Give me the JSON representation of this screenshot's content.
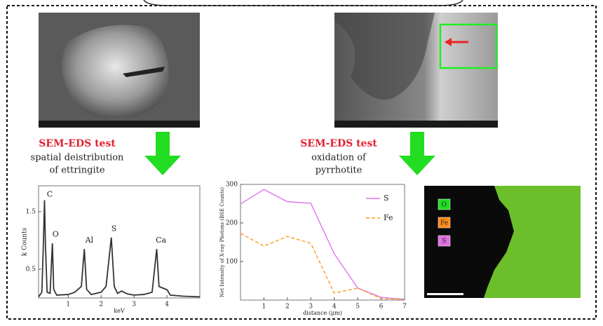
{
  "labels": {
    "left_test": "SEM-EDS test",
    "left_caption_1": "spatial deistribution",
    "left_caption_2": "of ettringite",
    "right_test": "SEM-EDS test",
    "right_caption_1": "oxidation of",
    "right_caption_2": "pyrrhotite",
    "map_legend": [
      {
        "name": "O",
        "color": "#22dd22"
      },
      {
        "name": "Fe",
        "color": "#ff8c1a"
      },
      {
        "name": "S",
        "color": "#e070e0"
      }
    ]
  },
  "chart_data": [
    {
      "type": "line",
      "x_label": "keV",
      "y_label": "k Counts",
      "xlim": [
        0.1,
        5
      ],
      "ylim": [
        0,
        1.95
      ],
      "xticks": [
        1,
        2,
        3,
        4
      ],
      "yticks": [
        0.5,
        1.5
      ],
      "x": [
        0.1,
        0.2,
        0.25,
        0.28,
        0.31,
        0.36,
        0.45,
        0.52,
        0.56,
        0.65,
        1.0,
        1.2,
        1.4,
        1.49,
        1.56,
        1.7,
        2.0,
        2.15,
        2.31,
        2.4,
        2.5,
        2.62,
        2.8,
        3.0,
        3.3,
        3.55,
        3.69,
        3.76,
        4.01,
        4.1,
        4.5,
        5.0
      ],
      "series": [
        {
          "color": "#333333",
          "values": [
            0.02,
            0.1,
            1.0,
            1.7,
            0.9,
            0.1,
            0.08,
            0.95,
            0.15,
            0.05,
            0.06,
            0.1,
            0.2,
            0.85,
            0.15,
            0.06,
            0.1,
            0.2,
            1.05,
            0.2,
            0.08,
            0.12,
            0.07,
            0.05,
            0.06,
            0.1,
            0.85,
            0.2,
            0.14,
            0.05,
            0.03,
            0.02
          ]
        }
      ],
      "annotations": [
        {
          "text": "C",
          "x": 0.35,
          "y": 1.8
        },
        {
          "text": "O",
          "x": 0.52,
          "y": 1.1
        },
        {
          "text": "Al",
          "x": 1.52,
          "y": 1.0
        },
        {
          "text": "S",
          "x": 2.31,
          "y": 1.2
        },
        {
          "text": "Ca",
          "x": 3.66,
          "y": 1.0
        }
      ]
    },
    {
      "type": "line",
      "x_label": "distance (μm)",
      "y_label": "Net Intensity of X-ray Photons (BSE Counts)",
      "xlim": [
        0,
        7
      ],
      "ylim": [
        0,
        300
      ],
      "xticks": [
        1,
        2,
        3,
        4,
        5,
        6,
        7
      ],
      "yticks": [
        100,
        200,
        300
      ],
      "x": [
        0,
        1,
        2,
        3,
        4,
        5,
        6,
        7
      ],
      "series": [
        {
          "name": "S",
          "color": "#dd77ee",
          "values": [
            249,
            287,
            255,
            251,
            120,
            31,
            7,
            2
          ]
        },
        {
          "name": "Fe",
          "color": "#ff9922",
          "dashed": true,
          "values": [
            173,
            140,
            165,
            147,
            18,
            31,
            4,
            2
          ]
        }
      ]
    }
  ]
}
